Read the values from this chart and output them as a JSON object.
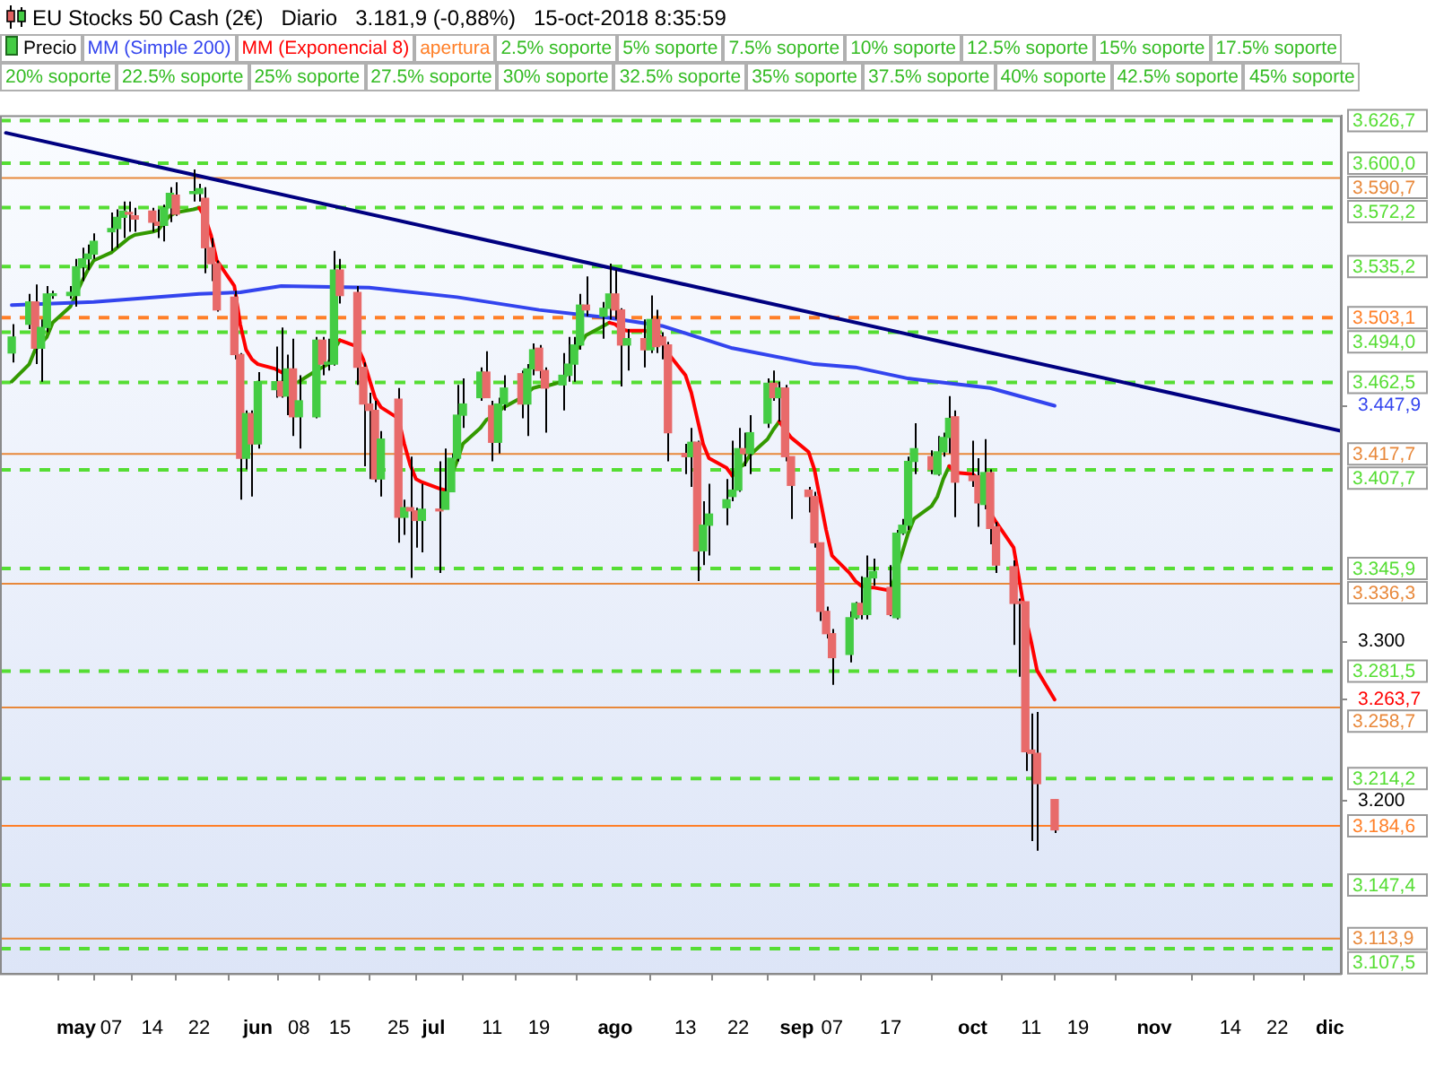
{
  "chart_data": {
    "type": "candlestick",
    "title": "EU Stocks 50 Cash (2€)   Diario   3.181,9 (-0,88%)   15-oct-2018 8:35:59",
    "legend": "top left",
    "annotations": [
      "apertura",
      "2.5% soporte",
      "5% soporte",
      "7.5% soporte",
      "10% soporte",
      "12.5% soporte",
      "15% soporte",
      "17.5% soporte",
      "20% soporte",
      "22.5% soporte",
      "25% soporte",
      "27.5% soporte",
      "30% soporte",
      "32.5% soporte",
      "35% soporte",
      "37.5% soporte",
      "40% soporte",
      "42.5% soporte",
      "45% soporte"
    ],
    "x": [
      "2018-04-20",
      "2018-04-23",
      "2018-04-24",
      "2018-04-25",
      "2018-04-26",
      "2018-04-27",
      "2018-04-30",
      "2018-05-01",
      "2018-05-02",
      "2018-05-03",
      "2018-05-04",
      "2018-05-07",
      "2018-05-08",
      "2018-05-09",
      "2018-05-10",
      "2018-05-11",
      "2018-05-14",
      "2018-05-15",
      "2018-05-16",
      "2018-05-17",
      "2018-05-18",
      "2018-05-21",
      "2018-05-22",
      "2018-05-23",
      "2018-05-24",
      "2018-05-25",
      "2018-05-28",
      "2018-05-29",
      "2018-05-30",
      "2018-05-31",
      "2018-06-01",
      "2018-06-04",
      "2018-06-05",
      "2018-06-06",
      "2018-06-07",
      "2018-06-08",
      "2018-06-11",
      "2018-06-12",
      "2018-06-13",
      "2018-06-14",
      "2018-06-15",
      "2018-06-18",
      "2018-06-19",
      "2018-06-20",
      "2018-06-21",
      "2018-06-22",
      "2018-06-25",
      "2018-06-26",
      "2018-06-27",
      "2018-06-28",
      "2018-06-29",
      "2018-07-02",
      "2018-07-03",
      "2018-07-04",
      "2018-07-05",
      "2018-07-06",
      "2018-07-09",
      "2018-07-10",
      "2018-07-11",
      "2018-07-12",
      "2018-07-13",
      "2018-07-16",
      "2018-07-17",
      "2018-07-18",
      "2018-07-19",
      "2018-07-20",
      "2018-07-23",
      "2018-07-24",
      "2018-07-25",
      "2018-07-26",
      "2018-07-27",
      "2018-07-30",
      "2018-07-31",
      "2018-08-01",
      "2018-08-02",
      "2018-08-03",
      "2018-08-06",
      "2018-08-07",
      "2018-08-08",
      "2018-08-09",
      "2018-08-10",
      "2018-08-13",
      "2018-08-14",
      "2018-08-15",
      "2018-08-16",
      "2018-08-17",
      "2018-08-20",
      "2018-08-21",
      "2018-08-22",
      "2018-08-23",
      "2018-08-24",
      "2018-08-27",
      "2018-08-28",
      "2018-08-29",
      "2018-08-30",
      "2018-08-31",
      "2018-09-03",
      "2018-09-04",
      "2018-09-05",
      "2018-09-06",
      "2018-09-07",
      "2018-09-10",
      "2018-09-11",
      "2018-09-12",
      "2018-09-13",
      "2018-09-14",
      "2018-09-17",
      "2018-09-18",
      "2018-09-19",
      "2018-09-20",
      "2018-09-21",
      "2018-09-24",
      "2018-09-25",
      "2018-09-26",
      "2018-09-27",
      "2018-09-28",
      "2018-10-01",
      "2018-10-02",
      "2018-10-03",
      "2018-10-04",
      "2018-10-05",
      "2018-10-08",
      "2018-10-09",
      "2018-10-10",
      "2018-10-11",
      "2018-10-12",
      "2018-10-15"
    ],
    "xlim": [
      "2018-04-18",
      "2018-12-03"
    ],
    "xticks": [
      {
        "value": "2018-05-01",
        "label": "may"
      },
      {
        "value": "2018-05-07",
        "label": "07"
      },
      {
        "value": "2018-05-14",
        "label": "14"
      },
      {
        "value": "2018-05-22",
        "label": "22"
      },
      {
        "value": "2018-06-01",
        "label": "jun"
      },
      {
        "value": "2018-06-08",
        "label": "08"
      },
      {
        "value": "2018-06-15",
        "label": "15"
      },
      {
        "value": "2018-06-25",
        "label": "25"
      },
      {
        "value": "2018-07-01",
        "label": "jul"
      },
      {
        "value": "2018-07-11",
        "label": "11"
      },
      {
        "value": "2018-07-19",
        "label": "19"
      },
      {
        "value": "2018-08-01",
        "label": "ago"
      },
      {
        "value": "2018-08-13",
        "label": "13"
      },
      {
        "value": "2018-08-22",
        "label": "22"
      },
      {
        "value": "2018-09-01",
        "label": "sep"
      },
      {
        "value": "2018-09-07",
        "label": "07"
      },
      {
        "value": "2018-09-17",
        "label": "17"
      },
      {
        "value": "2018-10-01",
        "label": "oct"
      },
      {
        "value": "2018-10-11",
        "label": "11"
      },
      {
        "value": "2018-10-19",
        "label": "19"
      },
      {
        "value": "2018-11-01",
        "label": "nov"
      },
      {
        "value": "2018-11-14",
        "label": "14"
      },
      {
        "value": "2018-11-22",
        "label": "22"
      },
      {
        "value": "2018-12-01",
        "label": "dic"
      }
    ],
    "ylim": [
      3092,
      3630
    ],
    "yticks": [
      {
        "value": 3447.9,
        "label": "3.447,9"
      },
      {
        "value": 3300,
        "label": "3.300"
      },
      {
        "value": 3263.7,
        "label": "3.263,7"
      },
      {
        "value": 3200,
        "label": "3.200"
      }
    ],
    "series": [
      {
        "name": "Precio",
        "ohlc": [
          [
            3481,
            3499,
            3475,
            3491
          ],
          [
            3499,
            3518,
            3496,
            3513
          ],
          [
            3513,
            3524,
            3474,
            3484
          ],
          [
            3484,
            3502,
            3463,
            3497
          ],
          [
            3497,
            3523,
            3494,
            3518
          ],
          [
            3517,
            3520,
            3515,
            3518
          ],
          [
            3517,
            3523,
            3515,
            3519
          ],
          [
            3517,
            3540,
            3510,
            3535
          ],
          [
            3535,
            3547,
            3526,
            3540
          ],
          [
            3540,
            3549,
            3533,
            3543
          ],
          [
            3543,
            3556,
            3540,
            3551
          ],
          [
            3557,
            3569,
            3545,
            3559
          ],
          [
            3559,
            3571,
            3547,
            3566
          ],
          [
            3566,
            3576,
            3553,
            3570
          ],
          [
            3569,
            3576,
            3557,
            3568
          ],
          [
            3567,
            3572,
            3557,
            3565
          ],
          [
            3570,
            3572,
            3557,
            3563
          ],
          [
            3563,
            3571,
            3553,
            3561
          ],
          [
            3561,
            3574,
            3551,
            3572
          ],
          [
            3572,
            3585,
            3563,
            3581
          ],
          [
            3580,
            3588,
            3567,
            3568
          ],
          [
            3581,
            3596,
            3576,
            3582
          ],
          [
            3581,
            3587,
            3576,
            3584
          ],
          [
            3578,
            3585,
            3531,
            3547
          ],
          [
            3547,
            3553,
            3526,
            3537
          ],
          [
            3537,
            3539,
            3507,
            3508
          ],
          [
            3516,
            3520,
            3477,
            3480
          ],
          [
            3480,
            3481,
            3389,
            3415
          ],
          [
            3415,
            3445,
            3408,
            3443
          ],
          [
            3443,
            3445,
            3391,
            3424
          ],
          [
            3424,
            3469,
            3421,
            3463
          ],
          [
            3458,
            3485,
            3453,
            3463
          ],
          [
            3463,
            3497,
            3453,
            3454
          ],
          [
            3454,
            3480,
            3442,
            3471
          ],
          [
            3471,
            3490,
            3429,
            3441
          ],
          [
            3441,
            3467,
            3421,
            3451
          ],
          [
            3441,
            3491,
            3440,
            3489
          ],
          [
            3489,
            3491,
            3467,
            3474
          ],
          [
            3474,
            3490,
            3470,
            3475
          ],
          [
            3474,
            3545,
            3473,
            3533
          ],
          [
            3533,
            3540,
            3512,
            3517
          ],
          [
            3519,
            3523,
            3461,
            3472
          ],
          [
            3472,
            3475,
            3410,
            3449
          ],
          [
            3449,
            3456,
            3402,
            3445
          ],
          [
            3445,
            3451,
            3400,
            3402
          ],
          [
            3402,
            3432,
            3391,
            3427
          ],
          [
            3452,
            3459,
            3362,
            3378
          ],
          [
            3378,
            3389,
            3367,
            3384
          ],
          [
            3384,
            3416,
            3340,
            3382
          ],
          [
            3382,
            3384,
            3359,
            3376
          ],
          [
            3376,
            3399,
            3356,
            3383
          ],
          [
            3383,
            3413,
            3343,
            3382
          ],
          [
            3383,
            3421,
            3383,
            3394
          ],
          [
            3394,
            3418,
            3394,
            3415
          ],
          [
            3415,
            3461,
            3413,
            3442
          ],
          [
            3442,
            3465,
            3434,
            3449
          ],
          [
            3453,
            3472,
            3451,
            3469
          ],
          [
            3469,
            3482,
            3453,
            3453
          ],
          [
            3448,
            3451,
            3413,
            3425
          ],
          [
            3425,
            3453,
            3418,
            3449
          ],
          [
            3449,
            3467,
            3445,
            3459
          ],
          [
            3468,
            3470,
            3440,
            3449
          ],
          [
            3449,
            3474,
            3429,
            3471
          ],
          [
            3471,
            3487,
            3467,
            3483
          ],
          [
            3484,
            3486,
            3465,
            3470
          ],
          [
            3470,
            3472,
            3431,
            3459
          ],
          [
            3461,
            3481,
            3445,
            3467
          ],
          [
            3467,
            3491,
            3463,
            3474
          ],
          [
            3474,
            3491,
            3463,
            3486
          ],
          [
            3486,
            3518,
            3483,
            3511
          ],
          [
            3511,
            3529,
            3504,
            3508
          ],
          [
            3504,
            3513,
            3490,
            3509
          ],
          [
            3509,
            3537,
            3502,
            3518
          ],
          [
            3518,
            3533,
            3502,
            3508
          ],
          [
            3508,
            3509,
            3460,
            3486
          ],
          [
            3486,
            3496,
            3470,
            3490
          ],
          [
            3490,
            3502,
            3472,
            3483
          ],
          [
            3483,
            3517,
            3481,
            3502
          ],
          [
            3502,
            3508,
            3481,
            3485
          ],
          [
            3491,
            3494,
            3477,
            3486
          ],
          [
            3486,
            3488,
            3413,
            3431
          ],
          [
            3418,
            3424,
            3405,
            3416
          ],
          [
            3416,
            3434,
            3397,
            3425
          ],
          [
            3425,
            3426,
            3338,
            3357
          ],
          [
            3357,
            3388,
            3348,
            3373
          ],
          [
            3373,
            3399,
            3354,
            3380
          ],
          [
            3384,
            3402,
            3373,
            3389
          ],
          [
            3391,
            3426,
            3388,
            3395
          ],
          [
            3395,
            3434,
            3394,
            3421
          ],
          [
            3421,
            3431,
            3410,
            3418
          ],
          [
            3418,
            3442,
            3405,
            3431
          ],
          [
            3437,
            3465,
            3434,
            3462
          ],
          [
            3462,
            3470,
            3451,
            3453
          ],
          [
            3453,
            3463,
            3438,
            3459
          ],
          [
            3459,
            3461,
            3413,
            3416
          ],
          [
            3416,
            3416,
            3377,
            3398
          ],
          [
            3395,
            3397,
            3381,
            3391
          ],
          [
            3391,
            3394,
            3359,
            3362
          ],
          [
            3362,
            3362,
            3313,
            3319
          ],
          [
            3319,
            3322,
            3302,
            3305
          ],
          [
            3305,
            3308,
            3273,
            3290
          ],
          [
            3292,
            3319,
            3287,
            3315
          ],
          [
            3315,
            3325,
            3314,
            3324
          ],
          [
            3324,
            3341,
            3314,
            3317
          ],
          [
            3317,
            3354,
            3314,
            3340
          ],
          [
            3340,
            3352,
            3335,
            3344
          ],
          [
            3334,
            3348,
            3316,
            3317
          ],
          [
            3315,
            3370,
            3314,
            3368
          ],
          [
            3368,
            3377,
            3367,
            3373
          ],
          [
            3373,
            3416,
            3370,
            3413
          ],
          [
            3413,
            3437,
            3405,
            3421
          ],
          [
            3416,
            3420,
            3405,
            3408
          ],
          [
            3405,
            3429,
            3404,
            3419
          ],
          [
            3419,
            3431,
            3416,
            3428
          ],
          [
            3428,
            3454,
            3418,
            3440
          ],
          [
            3441,
            3445,
            3378,
            3400
          ],
          [
            3404,
            3426,
            3397,
            3401
          ],
          [
            3404,
            3415,
            3372,
            3387
          ],
          [
            3386,
            3427,
            3383,
            3406
          ],
          [
            3406,
            3408,
            3361,
            3371
          ],
          [
            3372,
            3375,
            3343,
            3348
          ],
          [
            3347,
            3351,
            3298,
            3324
          ],
          [
            3325,
            3327,
            3278,
            3324
          ],
          [
            3325,
            3325,
            3219,
            3231
          ],
          [
            3232,
            3255,
            3175,
            3230
          ],
          [
            3230,
            3256,
            3169,
            3211
          ],
          [
            3201,
            3201,
            3180,
            3182
          ]
        ]
      },
      {
        "name": "MM (Simple 200)",
        "type": "line",
        "color": "#3344ee",
        "x": [
          "2018-04-20",
          "2018-05-04",
          "2018-05-22",
          "2018-05-29",
          "2018-06-05",
          "2018-06-20",
          "2018-07-05",
          "2018-07-19",
          "2018-07-31",
          "2018-08-09",
          "2018-08-15",
          "2018-08-21",
          "2018-09-04",
          "2018-09-11",
          "2018-09-20",
          "2018-10-04",
          "2018-10-15"
        ],
        "values": [
          3511,
          3513,
          3518,
          3519,
          3523,
          3522,
          3516,
          3508,
          3503,
          3498,
          3491,
          3484,
          3474,
          3472,
          3465,
          3459,
          3447.9
        ]
      },
      {
        "name": "MM (Exponencial 8)",
        "type": "line",
        "color": "#ff0000",
        "values": [
          null,
          null,
          null,
          null,
          null,
          null,
          null,
          null,
          null,
          null,
          null,
          null,
          null,
          null,
          null,
          null,
          null,
          null,
          null,
          null,
          null,
          null,
          3572,
          3566,
          3555,
          3539,
          3523,
          3499,
          3483,
          3477,
          3474,
          3471,
          3469,
          3467,
          3461,
          null,
          null,
          null,
          null,
          null,
          3489,
          3485,
          3477,
          3465,
          3453,
          3447,
          3440,
          3424,
          3411,
          3402,
          3400,
          3396,
          3395,
          null,
          null,
          null,
          null,
          null,
          null,
          null,
          null,
          null,
          null,
          null,
          null,
          null,
          null,
          null,
          null,
          null,
          null,
          null,
          3500,
          3499,
          3496,
          3495,
          3495,
          3494,
          3493,
          3490,
          3481,
          3467,
          3456,
          3440,
          3424,
          3415,
          3409,
          3404,
          null,
          null,
          null,
          null,
          null,
          3438,
          3433,
          3428,
          3419,
          3408,
          3389,
          3370,
          3354,
          3343,
          3338,
          3335,
          3334,
          3334,
          3332,
          null,
          null,
          null,
          null,
          null,
          null,
          null,
          3410,
          3406,
          3405,
          3402,
          3395,
          3381,
          3375,
          3359,
          3338,
          3316,
          3300,
          3282,
          3263.7
        ]
      },
      {
        "type": "line",
        "color": "#339900",
        "x": [
          "2018-04-20",
          "2018-04-23",
          "2018-04-24",
          "2018-04-25",
          "2018-04-26",
          "2018-04-27",
          "2018-04-30",
          "2018-05-01",
          "2018-05-02",
          "2018-05-03",
          "2018-05-04",
          "2018-05-07",
          "2018-05-08",
          "2018-05-09",
          "2018-05-10",
          "2018-05-11",
          "2018-05-14",
          "2018-05-15",
          "2018-05-16",
          "2018-05-17",
          "2018-05-18",
          "2018-05-21",
          "2018-05-22"
        ],
        "values": [
          3463,
          3474,
          3483,
          3487,
          3491,
          3500,
          3510,
          3518,
          3526,
          3533,
          3539,
          3544,
          3547,
          3550,
          3553,
          3555,
          3557,
          3558,
          3563,
          3567,
          3569,
          3571,
          3572
        ]
      },
      {
        "type": "line",
        "color": "#339900",
        "x": [
          "2018-06-08",
          "2018-06-11",
          "2018-06-12",
          "2018-06-13",
          "2018-06-14",
          "2018-06-15"
        ],
        "values": [
          3463,
          3470,
          3472,
          3474,
          3483,
          3489
        ]
      },
      {
        "type": "line",
        "color": "#339900",
        "x": [
          "2018-07-04",
          "2018-07-05",
          "2018-07-06",
          "2018-07-09",
          "2018-07-10",
          "2018-07-11",
          "2018-07-13",
          "2018-07-16",
          "2018-07-17",
          "2018-07-18",
          "2018-07-19",
          "2018-07-20",
          "2018-07-23",
          "2018-07-24",
          "2018-07-25",
          "2018-07-26",
          "2018-07-27",
          "2018-07-30",
          "2018-07-31"
        ],
        "values": [
          3404,
          3413,
          3424,
          3434,
          3439,
          3441,
          3447,
          3453,
          3456,
          3459,
          3460,
          3460,
          3463,
          3470,
          3481,
          3486,
          3492,
          3498,
          3500
        ]
      },
      {
        "type": "line",
        "color": "#339900",
        "x": [
          "2018-08-21",
          "2018-08-22",
          "2018-08-23",
          "2018-08-24",
          "2018-08-27",
          "2018-08-28",
          "2018-08-29"
        ],
        "values": [
          3404,
          3409,
          3411,
          3417,
          3427,
          3433,
          3438
        ]
      },
      {
        "type": "line",
        "color": "#339900",
        "x": [
          "2018-09-17",
          "2018-09-19",
          "2018-09-20",
          "2018-09-21",
          "2018-09-24",
          "2018-09-25",
          "2018-09-26",
          "2018-09-27"
        ],
        "values": [
          3332,
          3356,
          3368,
          3377,
          3385,
          3391,
          3402,
          3410
        ]
      },
      {
        "type": "line",
        "color": "#000080",
        "x": [
          "2018-04-19",
          "2018-12-03"
        ],
        "values": [
          3619,
          3432
        ]
      }
    ],
    "ref_lines": [
      {
        "axis": "y",
        "value": 3626.7,
        "label": "3.626,7",
        "color": "#55dd33",
        "line_style": "dashed"
      },
      {
        "axis": "y",
        "value": 3600,
        "label": "3.600,0",
        "color": "#55dd33",
        "line_style": "dashed"
      },
      {
        "axis": "y",
        "value": 3590.7,
        "label": "3.590,7",
        "color": "#e8883a",
        "line_style": "solid"
      },
      {
        "axis": "y",
        "value": 3572.2,
        "label": "3.572,2",
        "color": "#55dd33",
        "line_style": "dashed"
      },
      {
        "axis": "y",
        "value": 3535.2,
        "label": "3.535,2",
        "color": "#55dd33",
        "line_style": "dashed"
      },
      {
        "axis": "y",
        "value": 3503.1,
        "label": "3.503,1",
        "color": "#ff7f27",
        "line_style": "dashed"
      },
      {
        "axis": "y",
        "value": 3494,
        "label": "3.494,0",
        "color": "#55dd33",
        "line_style": "dashed"
      },
      {
        "axis": "y",
        "value": 3462.5,
        "label": "3.462,5",
        "color": "#55dd33",
        "line_style": "dashed"
      },
      {
        "axis": "y",
        "value": 3417.7,
        "label": "3.417,7",
        "color": "#e8883a",
        "line_style": "solid"
      },
      {
        "axis": "y",
        "value": 3407.7,
        "label": "3.407,7",
        "color": "#55dd33",
        "line_style": "dashed"
      },
      {
        "axis": "y",
        "value": 3345.9,
        "label": "3.345,9",
        "color": "#55dd33",
        "line_style": "dashed"
      },
      {
        "axis": "y",
        "value": 3336.3,
        "label": "3.336,3",
        "color": "#e8883a",
        "line_style": "solid"
      },
      {
        "axis": "y",
        "value": 3281.5,
        "label": "3.281,5",
        "color": "#55dd33",
        "line_style": "dashed"
      },
      {
        "axis": "y",
        "value": 3258.7,
        "label": "3.258,7",
        "color": "#e8883a",
        "line_style": "solid"
      },
      {
        "axis": "y",
        "value": 3214.2,
        "label": "3.214,2",
        "color": "#55dd33",
        "line_style": "dashed"
      },
      {
        "axis": "y",
        "value": 3184.6,
        "label": "3.184,6",
        "color": "#ff7f27",
        "line_style": "solid"
      },
      {
        "axis": "y",
        "value": 3147.4,
        "label": "3.147,4",
        "color": "#55dd33",
        "line_style": "dashed"
      },
      {
        "axis": "y",
        "value": 3113.9,
        "label": "3.113,9",
        "color": "#e8883a",
        "line_style": "solid"
      },
      {
        "axis": "y",
        "value": 3107.5,
        "label": "3.107,5",
        "color": "#55dd33",
        "line_style": "dashed"
      }
    ]
  }
}
